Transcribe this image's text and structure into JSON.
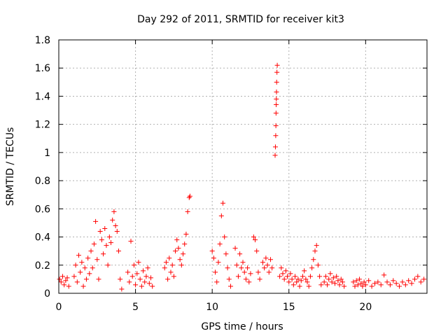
{
  "chart_data": {
    "type": "scatter",
    "title": "Day 292 of 2011, SRMTID for receiver kit3",
    "xlabel": "GPS time / hours",
    "ylabel": "SRMTID / TECUs",
    "xlim": [
      0,
      24
    ],
    "ylim": [
      0,
      1.8
    ],
    "xticks": [
      0,
      5,
      10,
      15,
      20
    ],
    "xtick_labels": [
      "0",
      "5",
      "10",
      "15",
      "20"
    ],
    "yticks": [
      0,
      0.2,
      0.4,
      0.6,
      0.8,
      1.0,
      1.2,
      1.4,
      1.6,
      1.8
    ],
    "ytick_labels": [
      "0",
      "0.2",
      "0.4",
      "0.6",
      "0.8",
      "1",
      "1.2",
      "1.4",
      "1.6",
      "1.8"
    ],
    "grid": true,
    "marker": "+",
    "color": "#ff0000",
    "series": [
      {
        "name": "SRMTID",
        "points": [
          [
            0.05,
            0.1
          ],
          [
            0.15,
            0.08
          ],
          [
            0.25,
            0.12
          ],
          [
            0.35,
            0.06
          ],
          [
            0.45,
            0.09
          ],
          [
            0.55,
            0.11
          ],
          [
            0.65,
            0.05
          ],
          [
            1.0,
            0.12
          ],
          [
            1.1,
            0.2
          ],
          [
            1.2,
            0.08
          ],
          [
            1.3,
            0.27
          ],
          [
            1.4,
            0.15
          ],
          [
            1.5,
            0.22
          ],
          [
            1.6,
            0.05
          ],
          [
            1.7,
            0.18
          ],
          [
            1.8,
            0.1
          ],
          [
            1.9,
            0.25
          ],
          [
            2.0,
            0.14
          ],
          [
            2.1,
            0.3
          ],
          [
            2.2,
            0.18
          ],
          [
            2.3,
            0.35
          ],
          [
            2.4,
            0.51
          ],
          [
            2.5,
            0.24
          ],
          [
            2.6,
            0.1
          ],
          [
            2.7,
            0.44
          ],
          [
            2.8,
            0.38
          ],
          [
            2.9,
            0.28
          ],
          [
            3.0,
            0.46
          ],
          [
            3.1,
            0.34
          ],
          [
            3.2,
            0.2
          ],
          [
            3.3,
            0.4
          ],
          [
            3.4,
            0.36
          ],
          [
            3.5,
            0.52
          ],
          [
            3.6,
            0.58
          ],
          [
            3.7,
            0.48
          ],
          [
            3.8,
            0.44
          ],
          [
            3.9,
            0.3
          ],
          [
            4.0,
            0.1
          ],
          [
            4.1,
            0.03
          ],
          [
            4.5,
            0.15
          ],
          [
            4.6,
            0.08
          ],
          [
            4.7,
            0.37
          ],
          [
            4.8,
            0.12
          ],
          [
            4.9,
            0.2
          ],
          [
            5.0,
            0.06
          ],
          [
            5.1,
            0.14
          ],
          [
            5.2,
            0.22
          ],
          [
            5.3,
            0.1
          ],
          [
            5.4,
            0.05
          ],
          [
            5.5,
            0.16
          ],
          [
            5.6,
            0.08
          ],
          [
            5.7,
            0.12
          ],
          [
            5.8,
            0.18
          ],
          [
            5.9,
            0.07
          ],
          [
            6.0,
            0.11
          ],
          [
            6.1,
            0.05
          ],
          [
            6.9,
            0.18
          ],
          [
            7.0,
            0.22
          ],
          [
            7.1,
            0.1
          ],
          [
            7.2,
            0.25
          ],
          [
            7.3,
            0.15
          ],
          [
            7.4,
            0.2
          ],
          [
            7.5,
            0.12
          ],
          [
            7.6,
            0.3
          ],
          [
            7.7,
            0.38
          ],
          [
            7.8,
            0.32
          ],
          [
            7.9,
            0.24
          ],
          [
            8.0,
            0.2
          ],
          [
            8.1,
            0.28
          ],
          [
            8.2,
            0.35
          ],
          [
            8.3,
            0.42
          ],
          [
            8.4,
            0.58
          ],
          [
            8.5,
            0.68
          ],
          [
            8.55,
            0.69
          ],
          [
            10.0,
            0.3
          ],
          [
            10.1,
            0.25
          ],
          [
            10.2,
            0.15
          ],
          [
            10.3,
            0.08
          ],
          [
            10.4,
            0.22
          ],
          [
            10.5,
            0.35
          ],
          [
            10.6,
            0.55
          ],
          [
            10.7,
            0.64
          ],
          [
            10.8,
            0.4
          ],
          [
            10.9,
            0.28
          ],
          [
            11.0,
            0.18
          ],
          [
            11.1,
            0.1
          ],
          [
            11.2,
            0.05
          ],
          [
            11.5,
            0.32
          ],
          [
            11.6,
            0.2
          ],
          [
            11.7,
            0.12
          ],
          [
            11.8,
            0.28
          ],
          [
            11.9,
            0.18
          ],
          [
            12.0,
            0.22
          ],
          [
            12.1,
            0.15
          ],
          [
            12.2,
            0.1
          ],
          [
            12.3,
            0.18
          ],
          [
            12.4,
            0.08
          ],
          [
            12.5,
            0.14
          ],
          [
            12.7,
            0.4
          ],
          [
            12.8,
            0.38
          ],
          [
            12.9,
            0.3
          ],
          [
            13.0,
            0.15
          ],
          [
            13.1,
            0.1
          ],
          [
            13.3,
            0.22
          ],
          [
            13.4,
            0.18
          ],
          [
            13.5,
            0.25
          ],
          [
            13.6,
            0.2
          ],
          [
            13.7,
            0.15
          ],
          [
            13.8,
            0.24
          ],
          [
            13.9,
            0.18
          ],
          [
            14.1,
            0.98
          ],
          [
            14.12,
            1.04
          ],
          [
            14.14,
            1.12
          ],
          [
            14.15,
            1.19
          ],
          [
            14.16,
            1.28
          ],
          [
            14.17,
            1.34
          ],
          [
            14.18,
            1.38
          ],
          [
            14.19,
            1.43
          ],
          [
            14.2,
            1.5
          ],
          [
            14.22,
            1.57
          ],
          [
            14.24,
            1.62
          ],
          [
            14.4,
            0.12
          ],
          [
            14.5,
            0.18
          ],
          [
            14.6,
            0.14
          ],
          [
            14.7,
            0.1
          ],
          [
            14.8,
            0.16
          ],
          [
            14.9,
            0.12
          ],
          [
            15.0,
            0.08
          ],
          [
            15.1,
            0.14
          ],
          [
            15.2,
            0.1
          ],
          [
            15.3,
            0.06
          ],
          [
            15.4,
            0.12
          ],
          [
            15.5,
            0.08
          ],
          [
            15.6,
            0.1
          ],
          [
            15.7,
            0.05
          ],
          [
            15.8,
            0.09
          ],
          [
            15.9,
            0.12
          ],
          [
            16.0,
            0.16
          ],
          [
            16.1,
            0.1
          ],
          [
            16.2,
            0.08
          ],
          [
            16.3,
            0.05
          ],
          [
            16.4,
            0.12
          ],
          [
            16.5,
            0.18
          ],
          [
            16.6,
            0.24
          ],
          [
            16.7,
            0.3
          ],
          [
            16.8,
            0.34
          ],
          [
            16.9,
            0.2
          ],
          [
            17.0,
            0.12
          ],
          [
            17.1,
            0.06
          ],
          [
            17.3,
            0.08
          ],
          [
            17.4,
            0.12
          ],
          [
            17.5,
            0.06
          ],
          [
            17.6,
            0.1
          ],
          [
            17.7,
            0.14
          ],
          [
            17.8,
            0.08
          ],
          [
            17.9,
            0.11
          ],
          [
            18.0,
            0.07
          ],
          [
            18.1,
            0.12
          ],
          [
            18.2,
            0.09
          ],
          [
            18.3,
            0.06
          ],
          [
            18.4,
            0.1
          ],
          [
            18.5,
            0.08
          ],
          [
            18.6,
            0.05
          ],
          [
            19.2,
            0.08
          ],
          [
            19.3,
            0.05
          ],
          [
            19.4,
            0.09
          ],
          [
            19.5,
            0.06
          ],
          [
            19.6,
            0.1
          ],
          [
            19.7,
            0.07
          ],
          [
            19.8,
            0.05
          ],
          [
            19.9,
            0.08
          ],
          [
            20.0,
            0.06
          ],
          [
            20.2,
            0.09
          ],
          [
            20.4,
            0.05
          ],
          [
            20.6,
            0.07
          ],
          [
            20.8,
            0.08
          ],
          [
            21.0,
            0.06
          ],
          [
            21.2,
            0.13
          ],
          [
            21.4,
            0.08
          ],
          [
            21.6,
            0.06
          ],
          [
            21.8,
            0.09
          ],
          [
            22.0,
            0.07
          ],
          [
            22.2,
            0.05
          ],
          [
            22.4,
            0.08
          ],
          [
            22.6,
            0.06
          ],
          [
            22.8,
            0.09
          ],
          [
            23.0,
            0.07
          ],
          [
            23.2,
            0.1
          ],
          [
            23.4,
            0.12
          ],
          [
            23.6,
            0.08
          ],
          [
            23.8,
            0.1
          ]
        ]
      }
    ]
  }
}
